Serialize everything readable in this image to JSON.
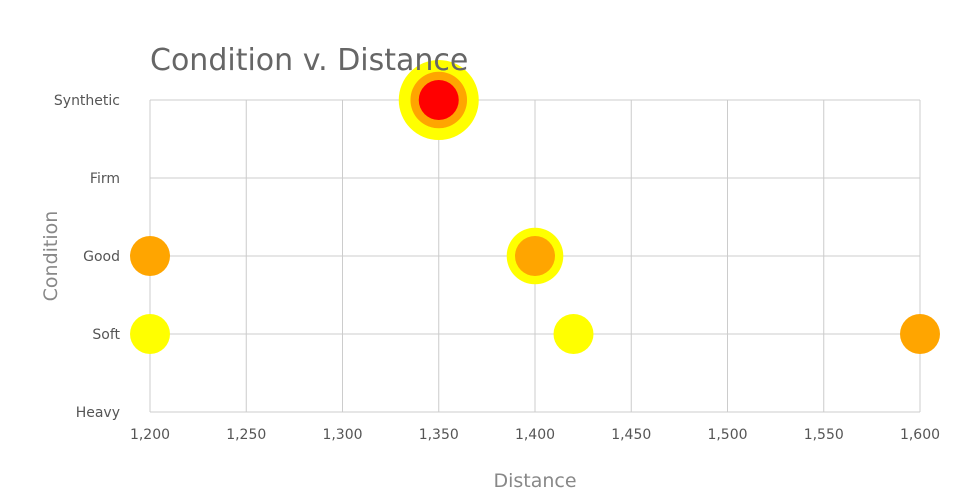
{
  "chart_data": {
    "type": "bubble",
    "title": "Condition v. Distance",
    "xlabel": "Distance",
    "ylabel": "Condition",
    "xlim": [
      1200,
      1600
    ],
    "x_ticks": [
      1200,
      1250,
      1300,
      1350,
      1400,
      1450,
      1500,
      1550,
      1600
    ],
    "x_tick_labels": [
      "1,200",
      "1,250",
      "1,300",
      "1,350",
      "1,400",
      "1,450",
      "1,500",
      "1,550",
      "1,600"
    ],
    "y_categories": [
      "Heavy",
      "Soft",
      "Good",
      "Firm",
      "Synthetic"
    ],
    "grid": true,
    "legend": "none",
    "points": [
      {
        "x": 1350,
        "y": "Synthetic",
        "size": 8,
        "color": "#ffff00"
      },
      {
        "x": 1350,
        "y": "Synthetic",
        "size": 4,
        "color": "#ffa500"
      },
      {
        "x": 1350,
        "y": "Synthetic",
        "size": 2,
        "color": "#ff0000"
      },
      {
        "x": 1400,
        "y": "Good",
        "size": 4,
        "color": "#ffff00"
      },
      {
        "x": 1400,
        "y": "Good",
        "size": 2,
        "color": "#ffa500"
      },
      {
        "x": 1200,
        "y": "Good",
        "size": 2,
        "color": "#ffa500"
      },
      {
        "x": 1200,
        "y": "Soft",
        "size": 2,
        "color": "#ffff00"
      },
      {
        "x": 1420,
        "y": "Soft",
        "size": 2,
        "color": "#ffff00"
      },
      {
        "x": 1600,
        "y": "Soft",
        "size": 2,
        "color": "#ffa500"
      }
    ]
  }
}
